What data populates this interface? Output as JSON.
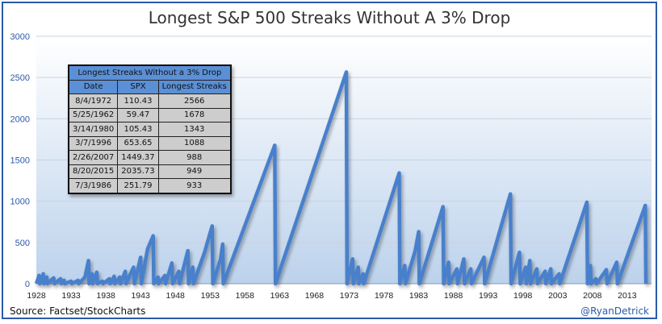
{
  "chart_data": {
    "type": "line",
    "title": "Longest S&P 500 Streaks Without A 3% Drop",
    "xlabel": "",
    "ylabel": "",
    "xlim": [
      1928,
      2016.5
    ],
    "ylim": [
      0,
      3000
    ],
    "yticks": [
      0,
      500,
      1000,
      1500,
      2000,
      2500,
      3000
    ],
    "xticks": [
      1928,
      1933,
      1938,
      1943,
      1948,
      1953,
      1958,
      1963,
      1968,
      1973,
      1978,
      1983,
      1988,
      1993,
      1998,
      2003,
      2008,
      2013
    ],
    "grid": "horizontal",
    "series_color": "#4a80cc",
    "points": [
      [
        1928,
        0
      ],
      [
        1928.4,
        100
      ],
      [
        1928.5,
        0
      ],
      [
        1929,
        120
      ],
      [
        1929.1,
        0
      ],
      [
        1929.5,
        80
      ],
      [
        1929.6,
        0
      ],
      [
        1930.5,
        70
      ],
      [
        1930.6,
        0
      ],
      [
        1931.5,
        60
      ],
      [
        1931.6,
        0
      ],
      [
        1932,
        40
      ],
      [
        1932.1,
        0
      ],
      [
        1933,
        30
      ],
      [
        1933.1,
        0
      ],
      [
        1934,
        40
      ],
      [
        1934.1,
        0
      ],
      [
        1935,
        80
      ],
      [
        1935.5,
        280
      ],
      [
        1935.6,
        0
      ],
      [
        1936,
        120
      ],
      [
        1936.1,
        0
      ],
      [
        1936.7,
        140
      ],
      [
        1936.8,
        0
      ],
      [
        1937.5,
        30
      ],
      [
        1937.6,
        0
      ],
      [
        1938.5,
        60
      ],
      [
        1938.6,
        0
      ],
      [
        1939.2,
        90
      ],
      [
        1939.3,
        0
      ],
      [
        1940,
        80
      ],
      [
        1940.1,
        0
      ],
      [
        1940.8,
        150
      ],
      [
        1940.9,
        0
      ],
      [
        1942,
        200
      ],
      [
        1942.1,
        0
      ],
      [
        1943,
        320
      ],
      [
        1943.1,
        0
      ],
      [
        1944,
        420
      ],
      [
        1944.8,
        580
      ],
      [
        1944.9,
        0
      ],
      [
        1945.5,
        80
      ],
      [
        1945.6,
        0
      ],
      [
        1946.5,
        100
      ],
      [
        1946.6,
        0
      ],
      [
        1947.5,
        250
      ],
      [
        1947.6,
        0
      ],
      [
        1948.5,
        150
      ],
      [
        1948.6,
        0
      ],
      [
        1949.8,
        400
      ],
      [
        1949.9,
        0
      ],
      [
        1950.5,
        200
      ],
      [
        1950.6,
        0
      ],
      [
        1952.2,
        380
      ],
      [
        1953.3,
        700
      ],
      [
        1953.4,
        0
      ],
      [
        1954.5,
        300
      ],
      [
        1954.8,
        480
      ],
      [
        1954.9,
        0
      ],
      [
        1962.3,
        1678
      ],
      [
        1962.4,
        0
      ],
      [
        1972.6,
        2566
      ],
      [
        1972.7,
        0
      ],
      [
        1973.5,
        300
      ],
      [
        1973.6,
        0
      ],
      [
        1974.3,
        200
      ],
      [
        1974.4,
        0
      ],
      [
        1975,
        120
      ],
      [
        1975.1,
        0
      ],
      [
        1980.2,
        1343
      ],
      [
        1980.3,
        0
      ],
      [
        1981,
        220
      ],
      [
        1981.1,
        0
      ],
      [
        1982.5,
        400
      ],
      [
        1983,
        630
      ],
      [
        1983.1,
        0
      ],
      [
        1986.5,
        933
      ],
      [
        1986.6,
        0
      ],
      [
        1987.3,
        260
      ],
      [
        1987.4,
        0
      ],
      [
        1988.5,
        180
      ],
      [
        1988.6,
        0
      ],
      [
        1989.5,
        300
      ],
      [
        1989.6,
        0
      ],
      [
        1990.5,
        180
      ],
      [
        1990.6,
        0
      ],
      [
        1992.4,
        320
      ],
      [
        1992.5,
        0
      ],
      [
        1996.2,
        1088
      ],
      [
        1996.3,
        0
      ],
      [
        1997.5,
        380
      ],
      [
        1997.6,
        0
      ],
      [
        1998.4,
        200
      ],
      [
        1998.5,
        0
      ],
      [
        1999,
        280
      ],
      [
        1999.1,
        0
      ],
      [
        2000,
        180
      ],
      [
        2000.1,
        0
      ],
      [
        2001.2,
        150
      ],
      [
        2001.3,
        0
      ],
      [
        2002,
        180
      ],
      [
        2002.1,
        0
      ],
      [
        2003.2,
        120
      ],
      [
        2003.3,
        0
      ],
      [
        2007.2,
        988
      ],
      [
        2007.3,
        0
      ],
      [
        2007.7,
        220
      ],
      [
        2007.8,
        0
      ],
      [
        2008.5,
        60
      ],
      [
        2008.6,
        0
      ],
      [
        2010,
        170
      ],
      [
        2010.1,
        0
      ],
      [
        2011.5,
        260
      ],
      [
        2011.6,
        0
      ],
      [
        2015.6,
        949
      ],
      [
        2015.7,
        0
      ]
    ],
    "table": {
      "caption": "Longest Streaks Without a 3% Drop",
      "columns": [
        "Date",
        "SPX",
        "Longest Streaks"
      ],
      "rows": [
        [
          "8/4/1972",
          "110.43",
          "2566"
        ],
        [
          "5/25/1962",
          "59.47",
          "1678"
        ],
        [
          "3/14/1980",
          "105.43",
          "1343"
        ],
        [
          "3/7/1996",
          "653.65",
          "1088"
        ],
        [
          "2/26/2007",
          "1449.37",
          "988"
        ],
        [
          "8/20/2015",
          "2035.73",
          "949"
        ],
        [
          "7/3/1986",
          "251.79",
          "933"
        ]
      ]
    }
  },
  "footer": {
    "source": "Source:  Factset/StockCharts",
    "handle": "@RyanDetrick"
  }
}
